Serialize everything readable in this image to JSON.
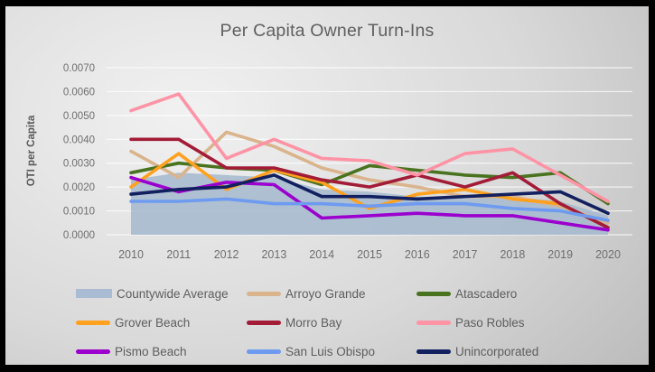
{
  "title": "Per Capita Owner Turn-Ins",
  "chart_data": {
    "type": "line",
    "title": "Per Capita Owner Turn-Ins",
    "xlabel": "",
    "ylabel": "OTI per Capita",
    "ylim": [
      0.0,
      0.007
    ],
    "y_tick_step": 0.001,
    "y_ticks": [
      "0.0000",
      "0.0010",
      "0.0020",
      "0.0030",
      "0.0040",
      "0.0050",
      "0.0060",
      "0.0070"
    ],
    "grid": "horizontal",
    "legend_position": "bottom",
    "x": [
      "2010",
      "2011",
      "2012",
      "2013",
      "2014",
      "2015",
      "2016",
      "2017",
      "2018",
      "2019",
      "2020"
    ],
    "series": [
      {
        "name": "Countywide Average",
        "type": "area",
        "color": "#a9bcd3",
        "fill": "#a6b9cf",
        "values": [
          0.0023,
          0.0026,
          0.0025,
          0.0024,
          0.0019,
          0.0018,
          0.0016,
          0.0015,
          0.0016,
          0.0014,
          0.0008
        ]
      },
      {
        "name": "Arroyo Grande",
        "type": "line",
        "color": "#d9b48c",
        "values": [
          0.0035,
          0.0024,
          0.0043,
          0.0037,
          0.0028,
          0.0023,
          0.002,
          0.0016,
          0.0016,
          0.0012,
          0.0005
        ]
      },
      {
        "name": "Atascadero",
        "type": "line",
        "color": "#4a7320",
        "values": [
          0.0026,
          0.003,
          0.0028,
          0.0027,
          0.0021,
          0.0029,
          0.0027,
          0.0025,
          0.0024,
          0.0026,
          0.0013
        ]
      },
      {
        "name": "Grover Beach",
        "type": "line",
        "color": "#ffa01e",
        "values": [
          0.002,
          0.0034,
          0.0019,
          0.0027,
          0.0022,
          0.0011,
          0.0017,
          0.0019,
          0.0015,
          0.0013,
          0.0003
        ]
      },
      {
        "name": "Morro Bay",
        "type": "line",
        "color": "#a31c37",
        "values": [
          0.004,
          0.004,
          0.0028,
          0.0028,
          0.0023,
          0.002,
          0.0025,
          0.002,
          0.0026,
          0.0013,
          0.0003
        ]
      },
      {
        "name": "Paso Robles",
        "type": "line",
        "color": "#ff93a6",
        "values": [
          0.0052,
          0.0059,
          0.0032,
          0.004,
          0.0032,
          0.0031,
          0.0025,
          0.0034,
          0.0036,
          0.0025,
          0.0014
        ]
      },
      {
        "name": "Pismo Beach",
        "type": "line",
        "color": "#9b00ce",
        "values": [
          0.0024,
          0.0018,
          0.0022,
          0.0021,
          0.0007,
          0.0008,
          0.0009,
          0.0008,
          0.0008,
          0.0005,
          0.0002
        ]
      },
      {
        "name": "San Luis Obispo",
        "type": "line",
        "color": "#6e9bf0",
        "values": [
          0.0014,
          0.0014,
          0.0015,
          0.0013,
          0.0013,
          0.0012,
          0.0013,
          0.0013,
          0.0011,
          0.001,
          0.0006
        ]
      },
      {
        "name": "Unincorporated",
        "type": "line",
        "color": "#12205f",
        "values": [
          0.0017,
          0.0019,
          0.002,
          0.0025,
          0.0016,
          0.0016,
          0.0015,
          0.0016,
          0.0017,
          0.0018,
          0.0009
        ]
      }
    ]
  },
  "colors": {
    "tick_text": "#6e6e6e",
    "gridline": "rgba(255,255,255,0.75)",
    "frame": "#000000"
  }
}
